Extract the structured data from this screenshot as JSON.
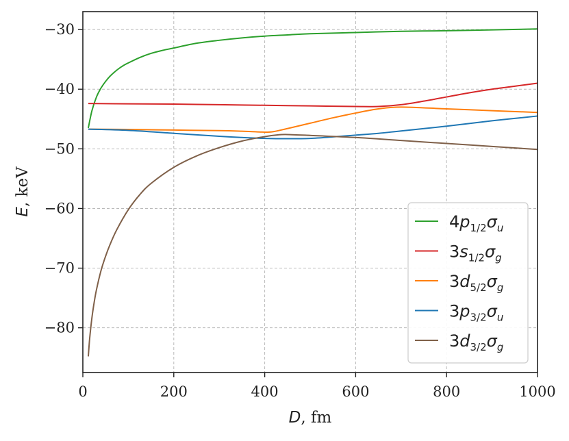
{
  "chart_data": {
    "type": "line",
    "xlabel": {
      "var": "D",
      "unit": ", fm"
    },
    "ylabel": {
      "var": "E",
      "unit": ", keV"
    },
    "xlim": [
      0,
      1000
    ],
    "ylim": [
      -87.5,
      -27
    ],
    "xticks": [
      0,
      200,
      400,
      600,
      800,
      1000
    ],
    "yticks": [
      -30,
      -40,
      -50,
      -60,
      -70,
      -80
    ],
    "ytick_labels": [
      "−30",
      "−40",
      "−50",
      "−60",
      "−70",
      "−80"
    ],
    "grid": true,
    "legend_position": "lower-right",
    "series": [
      {
        "name": "4p1/2σu",
        "label_parts": {
          "lead": "4",
          "letter": "p",
          "sub": "1/2",
          "sym": "σ",
          "symsub": "u"
        },
        "color": "#2ca02c",
        "x": [
          12,
          20,
          30,
          40,
          50,
          60,
          70,
          80,
          90,
          100,
          125,
          150,
          175,
          200,
          250,
          300,
          350,
          400,
          450,
          500,
          600,
          700,
          800,
          900,
          1000
        ],
        "y": [
          -46.5,
          -43.6,
          -41.3,
          -39.8,
          -38.7,
          -37.8,
          -37.1,
          -36.5,
          -36.0,
          -35.6,
          -34.7,
          -34.0,
          -33.5,
          -33.1,
          -32.3,
          -31.8,
          -31.4,
          -31.1,
          -30.9,
          -30.7,
          -30.5,
          -30.3,
          -30.2,
          -30.05,
          -29.9
        ]
      },
      {
        "name": "3s1/2σg",
        "label_parts": {
          "lead": "3",
          "letter": "s",
          "sub": "1/2",
          "sym": "σ",
          "symsub": "g"
        },
        "color": "#d62728",
        "x": [
          12,
          100,
          200,
          300,
          400,
          500,
          600,
          650,
          700,
          750,
          800,
          850,
          900,
          950,
          1000
        ],
        "y": [
          -42.4,
          -42.45,
          -42.5,
          -42.6,
          -42.7,
          -42.8,
          -42.9,
          -42.9,
          -42.6,
          -42.0,
          -41.3,
          -40.6,
          -40.0,
          -39.5,
          -39.0
        ]
      },
      {
        "name": "3d5/2σg",
        "label_parts": {
          "lead": "3",
          "letter": "d",
          "sub": "5/2",
          "sym": "σ",
          "symsub": "g"
        },
        "color": "#ff7f0e",
        "x": [
          12,
          100,
          200,
          300,
          350,
          400,
          420,
          450,
          500,
          550,
          600,
          650,
          700,
          800,
          900,
          1000
        ],
        "y": [
          -46.7,
          -46.75,
          -46.85,
          -46.95,
          -47.05,
          -47.2,
          -47.1,
          -46.6,
          -45.7,
          -44.8,
          -44.0,
          -43.3,
          -43.0,
          -43.3,
          -43.6,
          -43.9
        ]
      },
      {
        "name": "3p3/2σu",
        "label_parts": {
          "lead": "3",
          "letter": "p",
          "sub": "3/2",
          "sym": "σ",
          "symsub": "u"
        },
        "color": "#1f77b4",
        "x": [
          12,
          100,
          200,
          300,
          350,
          400,
          450,
          500,
          550,
          600,
          650,
          700,
          800,
          900,
          1000
        ],
        "y": [
          -46.7,
          -46.9,
          -47.4,
          -47.9,
          -48.1,
          -48.25,
          -48.3,
          -48.25,
          -48.0,
          -47.7,
          -47.4,
          -47.0,
          -46.2,
          -45.3,
          -44.5
        ]
      },
      {
        "name": "3d3/2σg",
        "label_parts": {
          "lead": "3",
          "letter": "d",
          "sub": "3/2",
          "sym": "σ",
          "symsub": "g"
        },
        "color": "#7f6049",
        "x": [
          12,
          15,
          20,
          25,
          30,
          40,
          50,
          60,
          75,
          100,
          125,
          150,
          200,
          250,
          300,
          350,
          400,
          430,
          450,
          500,
          600,
          700,
          800,
          900,
          1000
        ],
        "y": [
          -84.8,
          -81.8,
          -78.3,
          -75.7,
          -73.6,
          -70.4,
          -68.0,
          -66.0,
          -63.5,
          -60.2,
          -57.7,
          -55.8,
          -53.1,
          -51.2,
          -49.8,
          -48.7,
          -47.95,
          -47.65,
          -47.6,
          -47.75,
          -48.1,
          -48.6,
          -49.1,
          -49.6,
          -50.1
        ]
      }
    ]
  }
}
